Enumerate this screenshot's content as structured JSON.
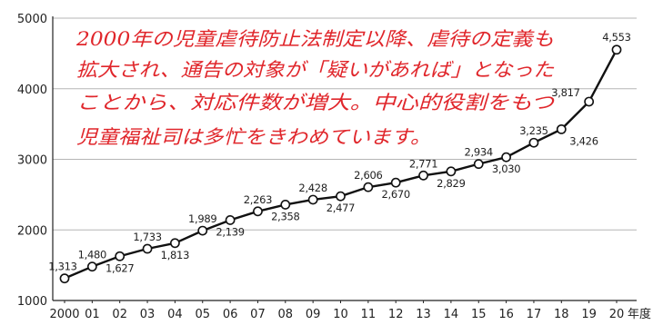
{
  "chart_data": {
    "type": "line",
    "x": [
      "2000",
      "01",
      "02",
      "03",
      "04",
      "05",
      "06",
      "07",
      "08",
      "09",
      "10",
      "11",
      "12",
      "13",
      "14",
      "15",
      "16",
      "17",
      "18",
      "19",
      "20"
    ],
    "x_unit": "年度",
    "values": [
      1313,
      1480,
      1627,
      1733,
      1813,
      1989,
      2139,
      2263,
      2358,
      2428,
      2477,
      2606,
      2670,
      2771,
      2829,
      2934,
      3030,
      3235,
      3426,
      3817,
      4553
    ],
    "value_labels": [
      "1,313",
      "1,480",
      "1,627",
      "1,733",
      "1,813",
      "1,989",
      "2,139",
      "2,263",
      "2,358",
      "2,428",
      "2,477",
      "2,606",
      "2,670",
      "2,771",
      "2,829",
      "2,934",
      "3,030",
      "3,235",
      "3,426",
      "3,817",
      "4,553"
    ],
    "ylim": [
      1000,
      5000
    ],
    "yticks": [
      "1000",
      "2000",
      "3000",
      "4000",
      "5000"
    ],
    "grid": true,
    "line_color": "#111111",
    "marker_fill": "#ffffff",
    "grid_color": "#b5b5b5"
  },
  "annotation": {
    "color": "#e0262b",
    "lines": [
      "2000年の児童虐待防止法制定以降、虐待の定義も",
      "拡大され、通告の対象が「疑いがあれば」となった",
      "ことから、対応件数が増大。中心的役割をもつ",
      "児童福祉司は多忙をきわめています。"
    ]
  }
}
